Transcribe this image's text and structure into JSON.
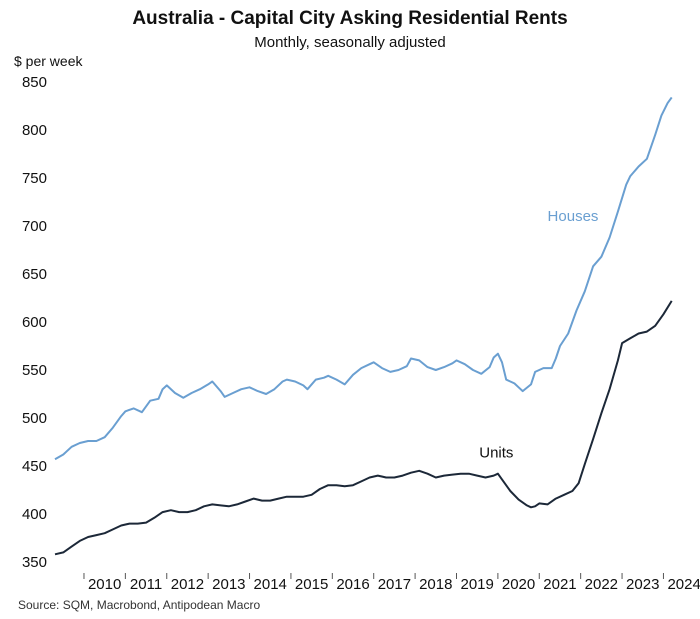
{
  "chart_data": {
    "type": "line",
    "title": "Australia - Capital City Asking Residential Rents",
    "subtitle": "Monthly, seasonally adjusted",
    "ylabel": "$ per week",
    "xlabel": "",
    "source": "Source: SQM, Macrobond, Antipodean Macro",
    "xlim": [
      2009.3,
      2024.4
    ],
    "ylim": [
      350,
      850
    ],
    "yticks": [
      350,
      400,
      450,
      500,
      550,
      600,
      650,
      700,
      750,
      800,
      850
    ],
    "xticks": [
      "2010",
      "2011",
      "2012",
      "2013",
      "2014",
      "2015",
      "2016",
      "2017",
      "2018",
      "2019",
      "2020",
      "2021",
      "2022",
      "2023",
      "2024"
    ],
    "grid": false,
    "legend": "none",
    "series": [
      {
        "name": "Houses",
        "color": "#6a9fd1",
        "label_at": [
          2010.8,
          705
        ],
        "points": [
          [
            2009.3,
            457
          ],
          [
            2009.5,
            462
          ],
          [
            2009.7,
            470
          ],
          [
            2009.9,
            474
          ],
          [
            2010.1,
            476
          ],
          [
            2010.3,
            476
          ],
          [
            2010.5,
            480
          ],
          [
            2010.7,
            490
          ],
          [
            2010.9,
            502
          ],
          [
            2011.0,
            507
          ],
          [
            2011.2,
            510
          ],
          [
            2011.4,
            506
          ],
          [
            2011.6,
            518
          ],
          [
            2011.8,
            520
          ],
          [
            2011.9,
            530
          ],
          [
            2012.0,
            534
          ],
          [
            2012.2,
            526
          ],
          [
            2012.4,
            521
          ],
          [
            2012.6,
            526
          ],
          [
            2012.8,
            530
          ],
          [
            2013.0,
            535
          ],
          [
            2013.1,
            538
          ],
          [
            2013.3,
            528
          ],
          [
            2013.4,
            522
          ],
          [
            2013.6,
            526
          ],
          [
            2013.8,
            530
          ],
          [
            2014.0,
            532
          ],
          [
            2014.2,
            528
          ],
          [
            2014.4,
            525
          ],
          [
            2014.6,
            530
          ],
          [
            2014.8,
            538
          ],
          [
            2014.9,
            540
          ],
          [
            2015.1,
            538
          ],
          [
            2015.3,
            534
          ],
          [
            2015.4,
            530
          ],
          [
            2015.6,
            540
          ],
          [
            2015.8,
            542
          ],
          [
            2015.9,
            544
          ],
          [
            2016.1,
            540
          ],
          [
            2016.3,
            535
          ],
          [
            2016.5,
            545
          ],
          [
            2016.7,
            552
          ],
          [
            2016.9,
            556
          ],
          [
            2017.0,
            558
          ],
          [
            2017.2,
            552
          ],
          [
            2017.4,
            548
          ],
          [
            2017.6,
            550
          ],
          [
            2017.8,
            554
          ],
          [
            2017.9,
            562
          ],
          [
            2018.1,
            560
          ],
          [
            2018.3,
            553
          ],
          [
            2018.5,
            550
          ],
          [
            2018.7,
            553
          ],
          [
            2018.9,
            557
          ],
          [
            2019.0,
            560
          ],
          [
            2019.2,
            556
          ],
          [
            2019.4,
            550
          ],
          [
            2019.6,
            546
          ],
          [
            2019.8,
            553
          ],
          [
            2019.9,
            563
          ],
          [
            2020.0,
            567
          ],
          [
            2020.1,
            558
          ],
          [
            2020.2,
            540
          ],
          [
            2020.4,
            536
          ],
          [
            2020.5,
            532
          ],
          [
            2020.6,
            528
          ],
          [
            2020.8,
            535
          ],
          [
            2020.9,
            548
          ],
          [
            2021.1,
            552
          ],
          [
            2021.3,
            552
          ],
          [
            2021.4,
            562
          ],
          [
            2021.5,
            575
          ],
          [
            2021.7,
            588
          ],
          [
            2021.9,
            612
          ],
          [
            2022.1,
            632
          ],
          [
            2022.3,
            658
          ],
          [
            2022.5,
            668
          ],
          [
            2022.7,
            688
          ],
          [
            2022.9,
            715
          ],
          [
            2023.1,
            743
          ],
          [
            2023.2,
            752
          ],
          [
            2023.4,
            762
          ],
          [
            2023.6,
            770
          ],
          [
            2023.8,
            795
          ],
          [
            2023.95,
            815
          ],
          [
            2024.1,
            828
          ],
          [
            2024.2,
            834
          ]
        ]
      },
      {
        "name": "Units",
        "color": "#1c2838",
        "label_at": [
          2019.55,
          459
        ],
        "points": [
          [
            2009.3,
            358
          ],
          [
            2009.5,
            360
          ],
          [
            2009.7,
            366
          ],
          [
            2009.9,
            372
          ],
          [
            2010.1,
            376
          ],
          [
            2010.3,
            378
          ],
          [
            2010.5,
            380
          ],
          [
            2010.7,
            384
          ],
          [
            2010.9,
            388
          ],
          [
            2011.1,
            390
          ],
          [
            2011.3,
            390
          ],
          [
            2011.5,
            391
          ],
          [
            2011.7,
            396
          ],
          [
            2011.9,
            402
          ],
          [
            2012.1,
            404
          ],
          [
            2012.3,
            402
          ],
          [
            2012.5,
            402
          ],
          [
            2012.7,
            404
          ],
          [
            2012.9,
            408
          ],
          [
            2013.1,
            410
          ],
          [
            2013.3,
            409
          ],
          [
            2013.5,
            408
          ],
          [
            2013.7,
            410
          ],
          [
            2013.9,
            413
          ],
          [
            2014.1,
            416
          ],
          [
            2014.3,
            414
          ],
          [
            2014.5,
            414
          ],
          [
            2014.7,
            416
          ],
          [
            2014.9,
            418
          ],
          [
            2015.1,
            418
          ],
          [
            2015.3,
            418
          ],
          [
            2015.5,
            420
          ],
          [
            2015.7,
            426
          ],
          [
            2015.9,
            430
          ],
          [
            2016.1,
            430
          ],
          [
            2016.3,
            429
          ],
          [
            2016.5,
            430
          ],
          [
            2016.7,
            434
          ],
          [
            2016.9,
            438
          ],
          [
            2017.1,
            440
          ],
          [
            2017.3,
            438
          ],
          [
            2017.5,
            438
          ],
          [
            2017.7,
            440
          ],
          [
            2017.9,
            443
          ],
          [
            2018.1,
            445
          ],
          [
            2018.3,
            442
          ],
          [
            2018.5,
            438
          ],
          [
            2018.7,
            440
          ],
          [
            2018.9,
            441
          ],
          [
            2019.1,
            442
          ],
          [
            2019.3,
            442
          ],
          [
            2019.5,
            440
          ],
          [
            2019.7,
            438
          ],
          [
            2019.9,
            440
          ],
          [
            2020.0,
            442
          ],
          [
            2020.1,
            436
          ],
          [
            2020.3,
            424
          ],
          [
            2020.5,
            415
          ],
          [
            2020.7,
            409
          ],
          [
            2020.8,
            407
          ],
          [
            2020.9,
            408
          ],
          [
            2021.0,
            411
          ],
          [
            2021.2,
            410
          ],
          [
            2021.4,
            416
          ],
          [
            2021.6,
            420
          ],
          [
            2021.8,
            424
          ],
          [
            2021.95,
            432
          ],
          [
            2022.1,
            452
          ],
          [
            2022.3,
            478
          ],
          [
            2022.5,
            505
          ],
          [
            2022.7,
            530
          ],
          [
            2022.9,
            560
          ],
          [
            2023.0,
            578
          ],
          [
            2023.2,
            583
          ],
          [
            2023.4,
            588
          ],
          [
            2023.6,
            590
          ],
          [
            2023.8,
            596
          ],
          [
            2024.0,
            608
          ],
          [
            2024.2,
            622
          ]
        ]
      }
    ]
  }
}
